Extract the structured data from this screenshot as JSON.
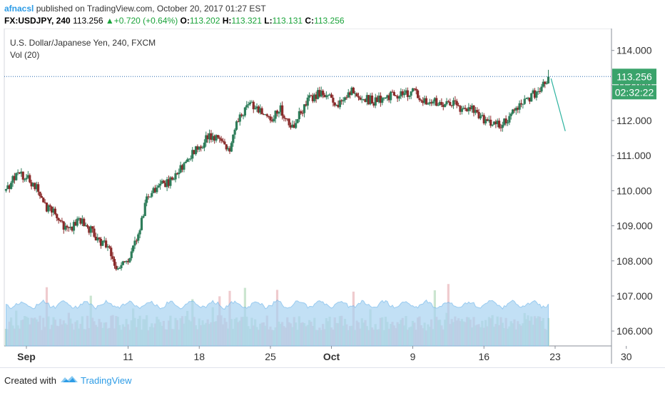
{
  "header": {
    "author": "afnacsl",
    "published": "published on TradingView.com, October 20, 2017 01:27 EST",
    "symbol": "FX:USDJPY, 240",
    "last": "113.256",
    "change": "+0.720 (+0.64%)",
    "o_label": "O:",
    "o": "113.202",
    "h_label": "H:",
    "h": "113.321",
    "l_label": "L:",
    "l": "113.131",
    "c_label": "C:",
    "c": "113.256"
  },
  "footer": {
    "created": "Created with",
    "brand": "TradingView"
  },
  "colors": {
    "up": "#2e7d5a",
    "down": "#8a2a2a",
    "price_label": "#3aa36b",
    "volume_area": "#a9d3f2",
    "projection": "#2eb3a0"
  },
  "chart_data": {
    "type": "candlestick",
    "title": "U.S. Dollar/Japanese Yen, 240, FXCM",
    "indicator": "Vol (20)",
    "ylim": [
      105.5,
      114.7
    ],
    "y_ticks": [
      "114.000",
      "113.000",
      "112.000",
      "111.000",
      "110.000",
      "109.000",
      "108.000",
      "107.000",
      "106.000"
    ],
    "y_tick_values": [
      114,
      113,
      112,
      111,
      110,
      109,
      108,
      107,
      106
    ],
    "x_ticks": [
      {
        "label": "Sep",
        "day": 0,
        "bold": true
      },
      {
        "label": "11",
        "day": 10
      },
      {
        "label": "18",
        "day": 17
      },
      {
        "label": "25",
        "day": 24
      },
      {
        "label": "Oct",
        "day": 30,
        "bold": true
      },
      {
        "label": "9",
        "day": 38
      },
      {
        "label": "16",
        "day": 45
      },
      {
        "label": "23",
        "day": 52
      },
      {
        "label": "30",
        "day": 59
      }
    ],
    "last_price_label": "113.256",
    "countdown_label": "02:32:22",
    "last_price": 113.256,
    "path": [
      [
        -2,
        110.0
      ],
      [
        -1,
        110.5
      ],
      [
        0,
        110.35
      ],
      [
        1,
        110.1
      ],
      [
        2,
        109.5
      ],
      [
        3,
        109.3
      ],
      [
        4,
        108.85
      ],
      [
        5,
        109.15
      ],
      [
        6,
        109.0
      ],
      [
        7,
        108.6
      ],
      [
        8,
        108.4
      ],
      [
        9,
        107.75
      ],
      [
        10,
        108.1
      ],
      [
        11,
        108.8
      ],
      [
        12,
        109.9
      ],
      [
        13,
        110.15
      ],
      [
        14,
        110.2
      ],
      [
        15,
        110.6
      ],
      [
        16,
        111.0
      ],
      [
        17,
        111.2
      ],
      [
        18,
        111.6
      ],
      [
        19,
        111.4
      ],
      [
        20,
        111.25
      ],
      [
        21,
        112.15
      ],
      [
        22,
        112.45
      ],
      [
        23,
        112.3
      ],
      [
        24,
        112.05
      ],
      [
        25,
        112.35
      ],
      [
        26,
        111.75
      ],
      [
        27,
        112.25
      ],
      [
        28,
        112.65
      ],
      [
        29,
        112.8
      ],
      [
        30,
        112.6
      ],
      [
        31,
        112.45
      ],
      [
        32,
        112.85
      ],
      [
        33,
        112.7
      ],
      [
        34,
        112.55
      ],
      [
        35,
        112.6
      ],
      [
        36,
        112.7
      ],
      [
        37,
        112.75
      ],
      [
        38,
        112.85
      ],
      [
        39,
        112.6
      ],
      [
        40,
        112.55
      ],
      [
        41,
        112.5
      ],
      [
        42,
        112.45
      ],
      [
        43,
        112.25
      ],
      [
        44,
        112.3
      ],
      [
        45,
        112.0
      ],
      [
        46,
        111.85
      ],
      [
        47,
        111.95
      ],
      [
        48,
        112.25
      ],
      [
        49,
        112.6
      ],
      [
        50,
        112.75
      ],
      [
        50.7,
        112.9
      ],
      [
        51.4,
        113.256
      ]
    ],
    "projection": [
      [
        51.6,
        113.2
      ],
      [
        53.0,
        111.7
      ]
    ]
  }
}
